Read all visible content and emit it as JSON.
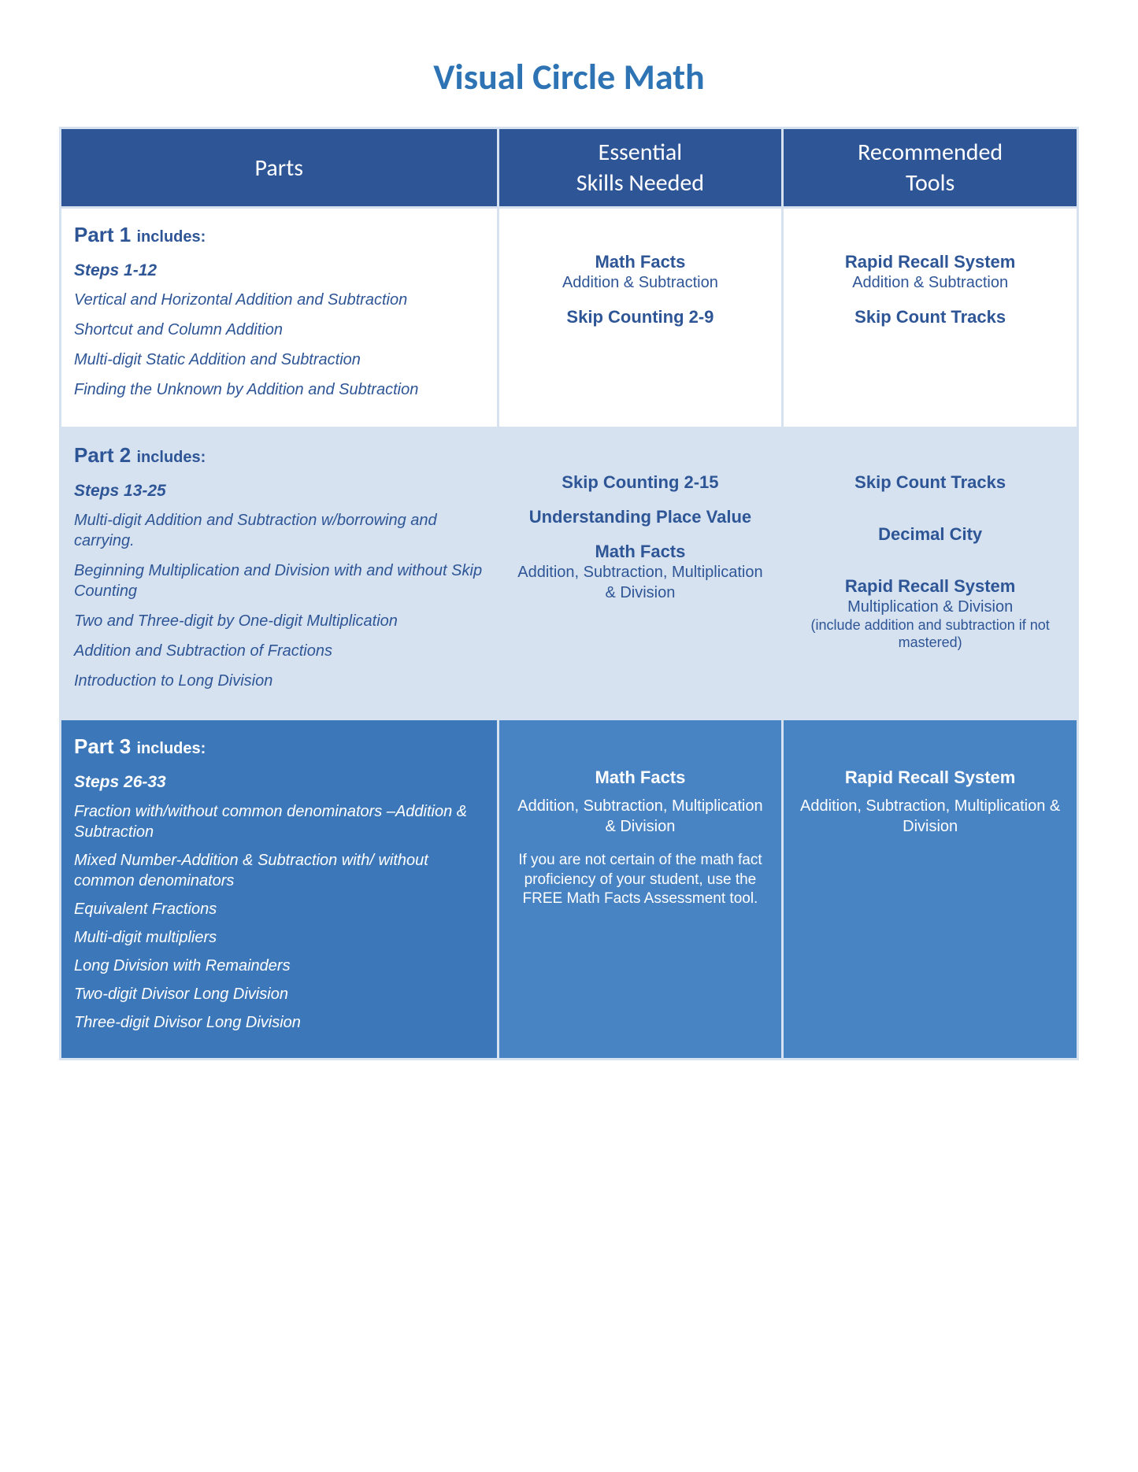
{
  "title": "Visual Circle Math",
  "colors": {
    "title": "#2e74b5",
    "header_bg": "#2e5596",
    "header_text": "#ffffff",
    "border": "#d6e2f0",
    "row1_bg": "#ffffff",
    "row2_bg": "#d6e2f0",
    "row3_parts_bg": "#3c78b9",
    "row3_other_bg": "#4883c4",
    "text_blue": "#2e5596",
    "text_white": "#ffffff"
  },
  "typography": {
    "title_fontsize": 46,
    "header_fontsize": 30,
    "part_header_fontsize": 26,
    "includes_fontsize": 20,
    "steps_fontsize": 21,
    "item_fontsize": 20,
    "skill_head_fontsize": 22,
    "skill_sub_fontsize": 20,
    "note_fontsize": 18
  },
  "headers": {
    "parts": "Parts",
    "skills": "Essential\nSkills Needed",
    "tools": "Recommended\nTools"
  },
  "part1": {
    "label": "Part 1",
    "includes": "includes:",
    "steps": "Steps 1-12",
    "items": [
      "Vertical and Horizontal Addition and Subtraction",
      "Shortcut and Column Addition",
      "Multi-digit Static Addition and Subtraction",
      "Finding the Unknown by Addition and Subtraction"
    ],
    "skills": [
      {
        "head": "Math Facts",
        "sub": "Addition & Subtraction"
      },
      {
        "head": "Skip Counting 2-9",
        "sub": ""
      }
    ],
    "tools": [
      {
        "head": "Rapid Recall System",
        "sub": "Addition & Subtraction"
      },
      {
        "head": "Skip Count Tracks",
        "sub": ""
      }
    ]
  },
  "part2": {
    "label": "Part 2",
    "includes": "includes:",
    "steps": "Steps 13-25",
    "items": [
      "Multi-digit Addition and Subtraction w/borrowing and carrying.",
      "Beginning Multiplication and Division with and without Skip Counting",
      "Two and Three-digit by One-digit Multiplication",
      "Addition and Subtraction of Fractions",
      "Introduction to Long Division"
    ],
    "skills": [
      {
        "head": "Skip Counting 2-15",
        "sub": ""
      },
      {
        "head": "Understanding Place Value",
        "sub": ""
      },
      {
        "head": "Math Facts",
        "sub": "Addition, Subtraction, Multiplication & Division"
      }
    ],
    "tools": [
      {
        "head": "Skip Count Tracks",
        "sub": ""
      },
      {
        "head": "Decimal City",
        "sub": ""
      },
      {
        "head": "Rapid Recall System",
        "sub": "Multiplication & Division",
        "note": "(include addition and subtraction if not mastered)"
      }
    ]
  },
  "part3": {
    "label": "Part 3",
    "includes": "includes:",
    "steps": "Steps 26-33",
    "items": [
      "Fraction with/without common denominators –Addition & Subtraction",
      "Mixed Number-Addition & Subtraction with/ without common denominators",
      "Equivalent Fractions",
      "Multi-digit multipliers",
      "Long Division with Remainders",
      "Two-digit Divisor Long Division",
      "Three-digit Divisor Long Division"
    ],
    "skills": [
      {
        "head": "Math Facts",
        "sub": "Addition, Subtraction, Multiplication & Division"
      }
    ],
    "skills_note": "If you are not certain of the math fact proficiency of your student, use the FREE Math Facts Assessment tool.",
    "tools": [
      {
        "head": "Rapid Recall System",
        "sub": "Addition, Subtraction, Multiplication & Division"
      }
    ]
  }
}
